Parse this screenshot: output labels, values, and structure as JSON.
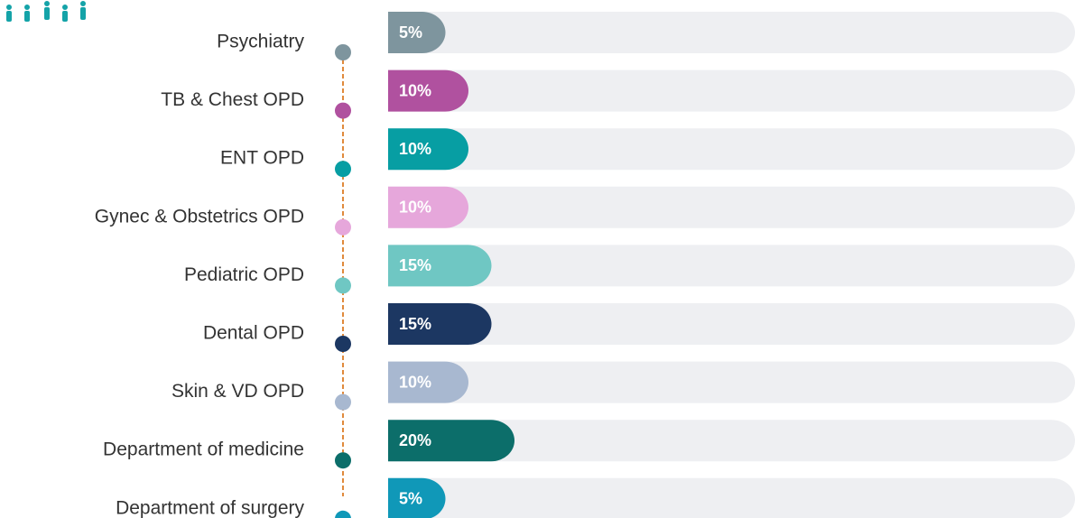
{
  "chart_data": {
    "type": "bar",
    "orientation": "horizontal",
    "categories": [
      "Psychiatry",
      "TB & Chest OPD",
      "ENT OPD",
      "Gynec & Obstetrics OPD",
      "Pediatric OPD",
      "Dental OPD",
      "Skin & VD OPD",
      "Department of medicine",
      "Department of  surgery"
    ],
    "values": [
      5,
      10,
      10,
      10,
      15,
      15,
      10,
      20,
      5
    ],
    "value_labels": [
      "5%",
      "10%",
      "10%",
      "10%",
      "15%",
      "15%",
      "10%",
      "20%",
      "5%"
    ],
    "colors": [
      "#7e959e",
      "#b0519f",
      "#079ea3",
      "#e6a7db",
      "#6fc7c3",
      "#1c3762",
      "#a8b8d0",
      "#0c6e6a",
      "#1098b8"
    ]
  }
}
